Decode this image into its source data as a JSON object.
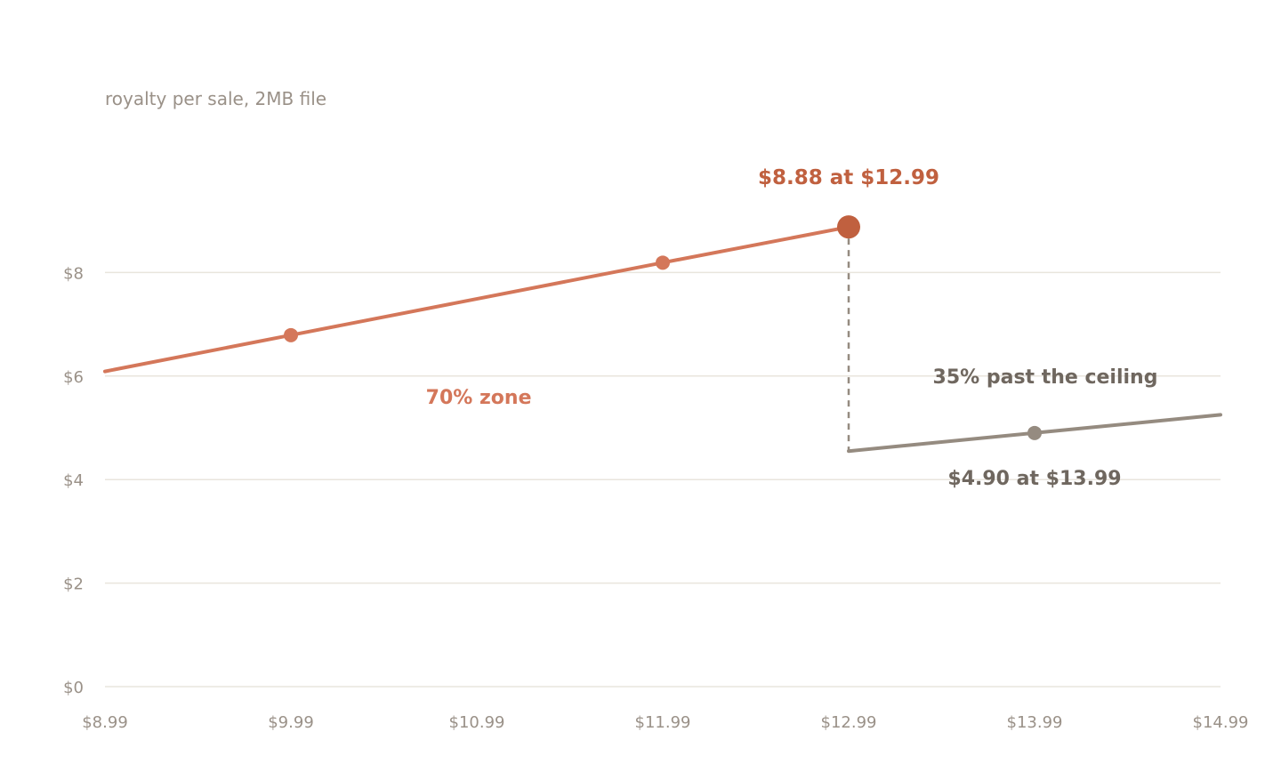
{
  "chart_data": {
    "type": "line",
    "subtitle": "royalty per sale, 2MB file",
    "x": [
      8.99,
      9.99,
      10.99,
      11.99,
      12.99,
      13.99,
      14.99
    ],
    "x_tick_labels": [
      "$8.99",
      "$9.99",
      "$10.99",
      "$11.99",
      "$12.99",
      "$13.99",
      "$14.99"
    ],
    "y_tick_values": [
      0,
      2,
      4,
      6,
      8
    ],
    "y_tick_labels": [
      "$0",
      "$2",
      "$4",
      "$6",
      "$8"
    ],
    "xlim": [
      8.99,
      14.99
    ],
    "ylim": [
      0,
      10
    ],
    "grid": true,
    "series": [
      {
        "key": "royalty-70",
        "color": "#d4775a",
        "points": [
          [
            8.99,
            6.09
          ],
          [
            9.99,
            6.79
          ],
          [
            11.99,
            8.19
          ],
          [
            12.99,
            8.88
          ]
        ],
        "markers": [
          [
            9.99,
            6.79
          ],
          [
            11.99,
            8.19
          ]
        ],
        "highlight": [
          12.99,
          8.88
        ]
      },
      {
        "key": "royalty-35",
        "color": "#958b80",
        "points": [
          [
            12.99,
            4.55
          ],
          [
            13.99,
            4.9
          ],
          [
            14.99,
            5.25
          ]
        ],
        "markers": [
          [
            13.99,
            4.9
          ]
        ]
      }
    ],
    "drop_line": {
      "x": 12.99,
      "from": 8.88,
      "to": 4.55,
      "color": "#958b80"
    },
    "annotations": [
      {
        "key": "peak",
        "text": "$8.88 at $12.99",
        "x": 12.99,
        "y": 8.88,
        "color": "#c0603f"
      },
      {
        "key": "zone70",
        "text": "70% zone",
        "x": 11.0,
        "y": 5.6,
        "color": "#d4775a"
      },
      {
        "key": "ceiling",
        "text": "35% past the ceiling",
        "x": 13.99,
        "y": 6.0,
        "color": "#6f675f"
      },
      {
        "key": "point35",
        "text": "$4.90 at $13.99",
        "x": 13.99,
        "y": 4.9,
        "color": "#6f675f"
      }
    ],
    "colors": {
      "grid": "#e9e5dd",
      "tick": "#9a9188",
      "highlight": "#c0603f"
    }
  }
}
